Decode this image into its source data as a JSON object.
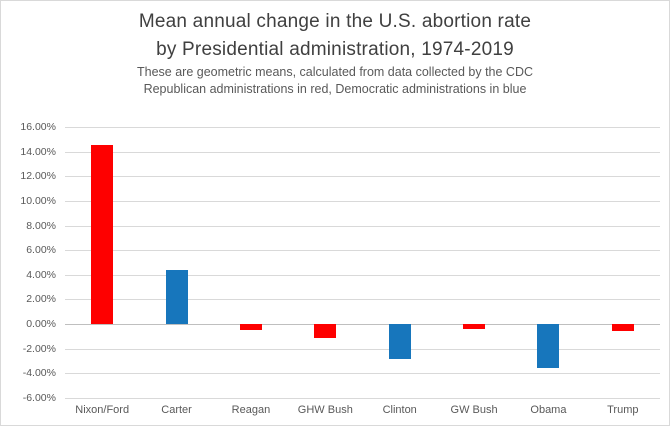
{
  "header": {
    "title_line1": "Mean annual change in the U.S. abortion rate",
    "title_line2": "by Presidential administration, 1974-2019",
    "subtitle_line1": "These are geometric means, calculated from data collected by the CDC",
    "subtitle_line2": "Republican administrations in red, Democratic administrations in blue"
  },
  "chart_data": {
    "type": "bar",
    "title": "Mean annual change in the U.S. abortion rate by Presidential administration, 1974-2019",
    "subtitle": "These are geometric means, calculated from data collected by the CDC. Republican administrations in red, Democratic administrations in blue",
    "categories": [
      "Nixon/Ford",
      "Carter",
      "Reagan",
      "GHW Bush",
      "Clinton",
      "GW Bush",
      "Obama",
      "Trump"
    ],
    "values": [
      14.5,
      4.4,
      -0.5,
      -1.1,
      -2.8,
      -0.4,
      -3.6,
      -0.6
    ],
    "parties": [
      "republican",
      "democrat",
      "republican",
      "republican",
      "democrat",
      "republican",
      "democrat",
      "republican"
    ],
    "party_colors": {
      "republican": "#FE0000",
      "democrat": "#1776BC"
    },
    "unit": "%",
    "ylim": [
      -6,
      16
    ],
    "ytick_values": [
      16,
      14,
      12,
      10,
      8,
      6,
      4,
      2,
      0,
      -2,
      -4,
      -6
    ],
    "ytick_labels": [
      "16.00%",
      "14.00%",
      "12.00%",
      "10.00%",
      "8.00%",
      "6.00%",
      "4.00%",
      "2.00%",
      "0.00%",
      "-2.00%",
      "-4.00%",
      "-6.00%"
    ],
    "xlabel": "",
    "ylabel": "",
    "grid": "horizontal",
    "legend_position": "none"
  },
  "colors": {
    "background": "#FFFFFF",
    "frame_border": "#D9D9D9",
    "gridline": "#D9D9D9",
    "zero_line": "#BFBFBF",
    "title_text": "#404040",
    "subtitle_text": "#595959",
    "axis_text": "#595959"
  }
}
